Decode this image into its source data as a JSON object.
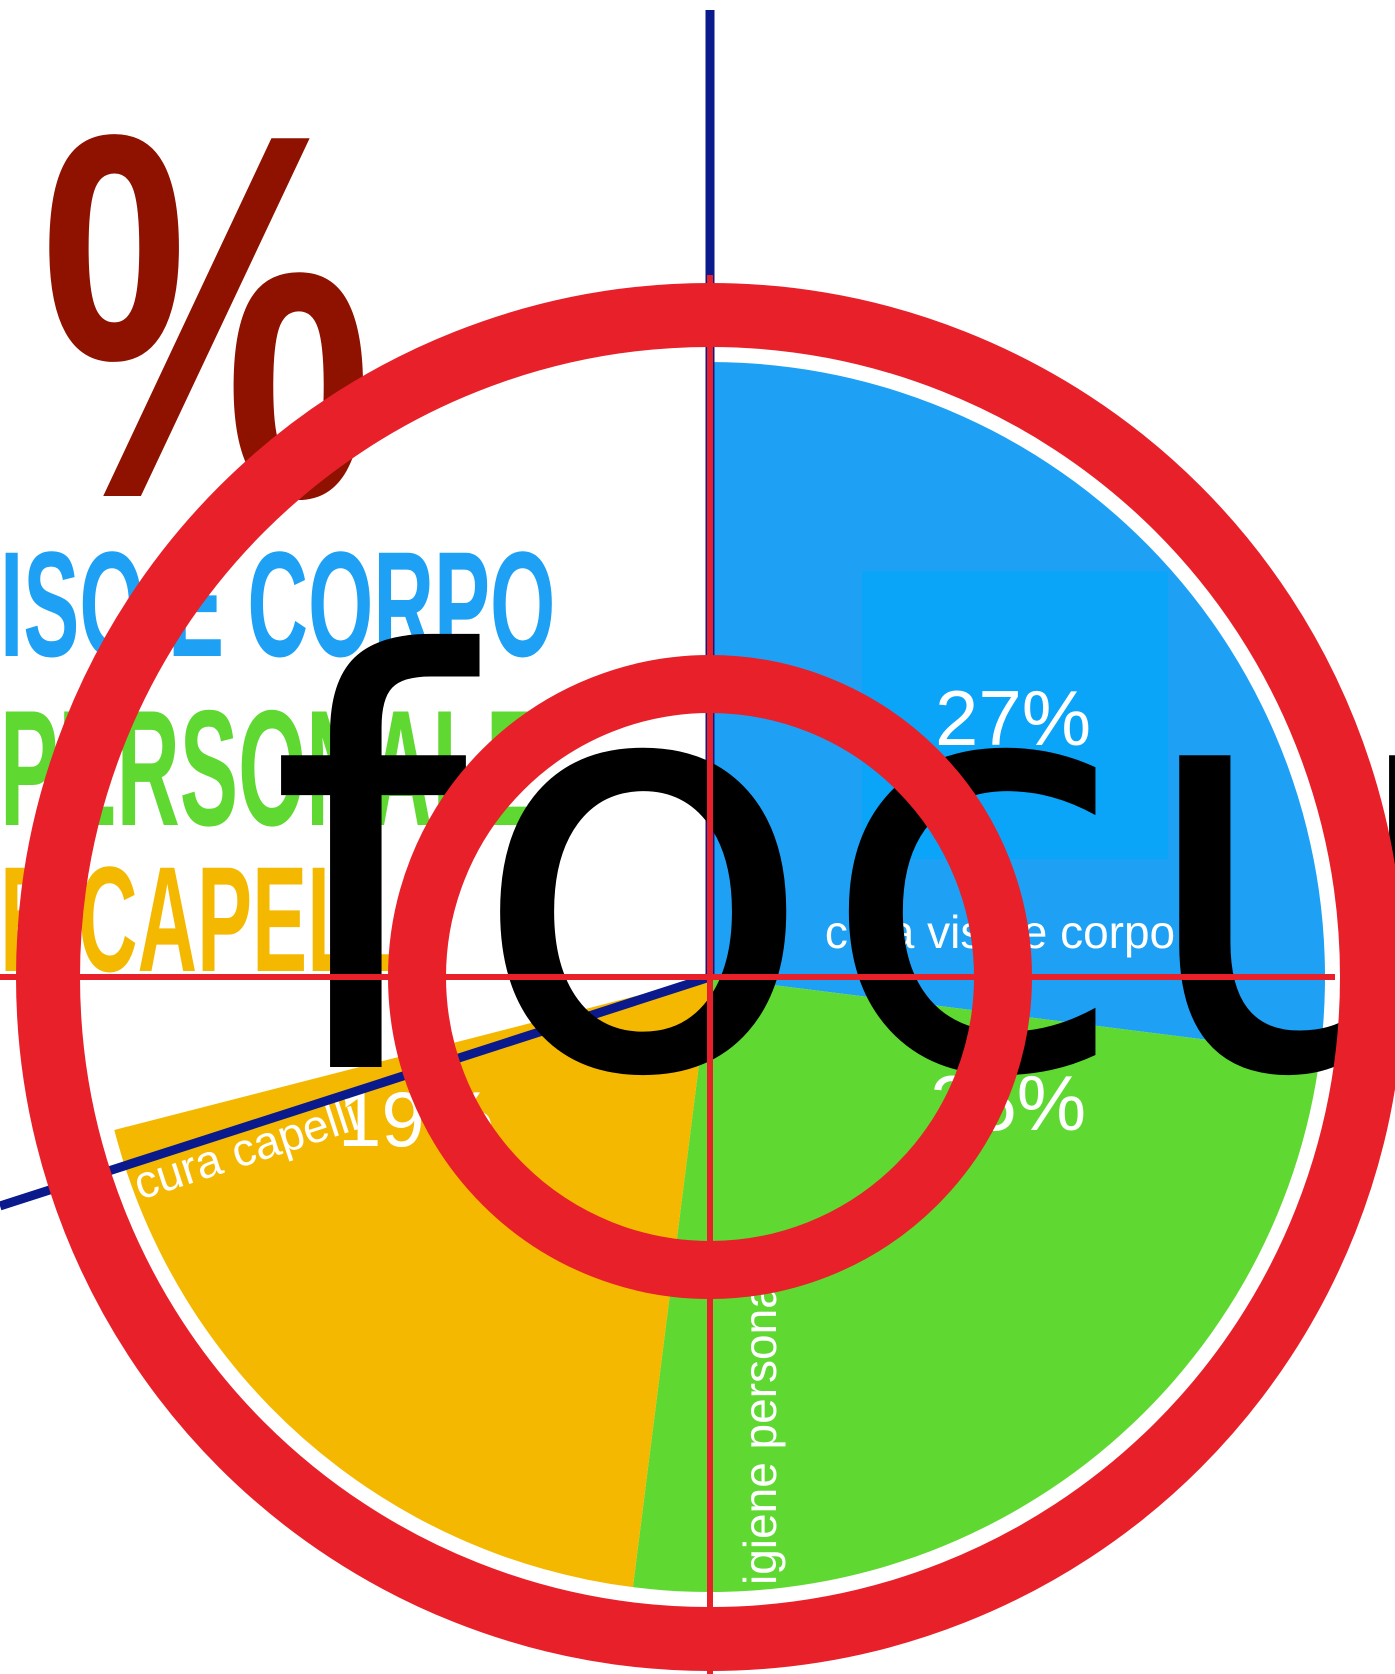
{
  "chart_data": {
    "type": "pie",
    "categories": [
      "cura viso e corpo",
      "igiene personale",
      "cura capelli"
    ],
    "values": [
      27,
      25,
      19
    ],
    "value_labels": [
      "27%",
      "25%",
      "19%"
    ],
    "colors": [
      "#1ea1f4",
      "#5fd932",
      "#f5b800"
    ],
    "annotations": [
      "%",
      "ISO E CORPO",
      "PERSONALE",
      "E CAPELLI",
      "focus"
    ]
  }
}
